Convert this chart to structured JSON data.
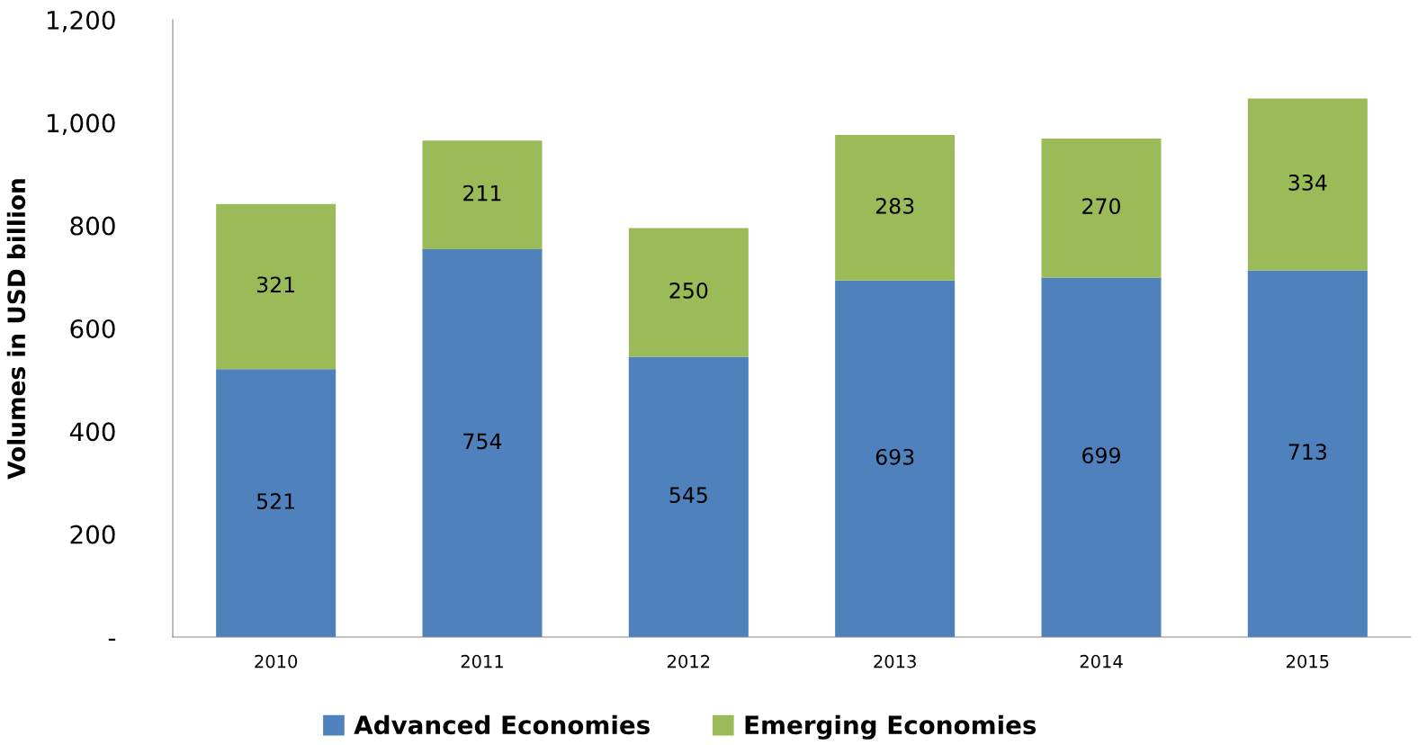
{
  "chart_data": {
    "type": "bar",
    "stacked": true,
    "ylabel": "Volumes in USD billion",
    "categories": [
      "2010",
      "2011",
      "2012",
      "2013",
      "2014",
      "2015"
    ],
    "series": [
      {
        "name": "Advanced Economies",
        "color": "#4f81bd",
        "values": [
          521,
          754,
          545,
          693,
          699,
          713
        ]
      },
      {
        "name": "Emerging Economies",
        "color": "#9bbb59",
        "values": [
          321,
          211,
          250,
          283,
          270,
          334
        ]
      }
    ],
    "ylim": [
      0,
      1200
    ],
    "yticks": [
      {
        "value": 0,
        "label": "-"
      },
      200,
      400,
      600,
      800,
      {
        "value": 1000,
        "label": "1,000"
      },
      {
        "value": 1200,
        "label": "1,200"
      }
    ],
    "data_labels": true,
    "grid": false,
    "legend": "bottom"
  }
}
